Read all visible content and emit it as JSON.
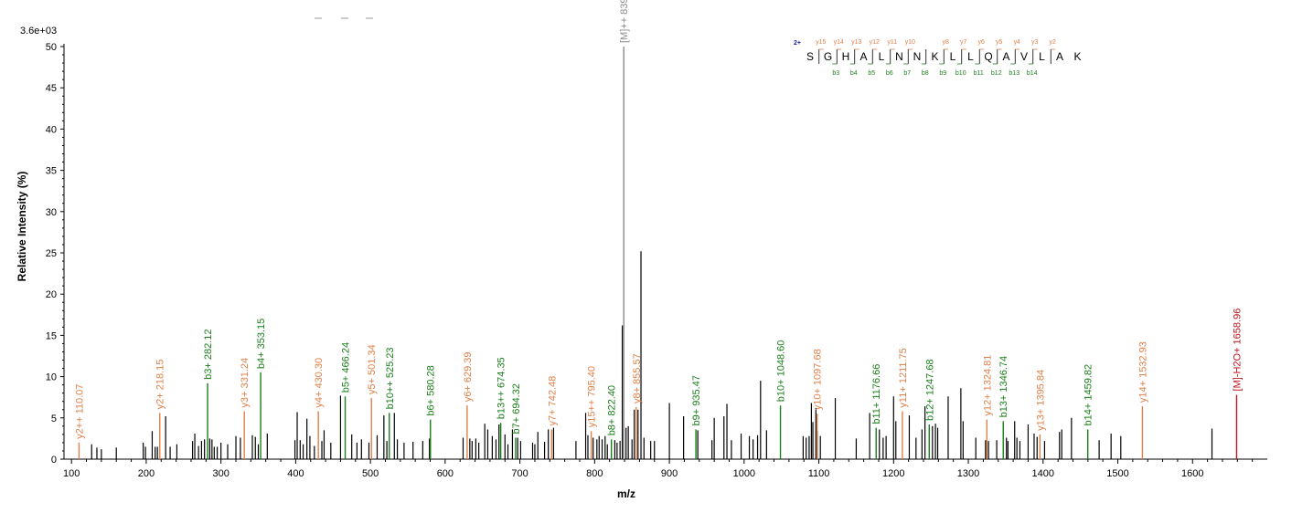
{
  "chart_data": {
    "type": "bar",
    "ymax_label": "3.6e+03",
    "ylabel": "Relative   Intensity (%)",
    "xlabel": "m/z",
    "xlim": [
      90,
      1700
    ],
    "ylim": [
      0,
      50
    ],
    "xticks": [
      100,
      200,
      300,
      400,
      500,
      600,
      700,
      800,
      900,
      1000,
      1100,
      1200,
      1300,
      1400,
      1500,
      1600
    ],
    "yticks": [
      0,
      5,
      10,
      15,
      20,
      25,
      30,
      35,
      40,
      45,
      50
    ],
    "colors": {
      "y_ion": "#e0804a",
      "b_ion": "#1a7f1a",
      "precursor": "#8c8c8c",
      "neutral_loss": "#c0141e",
      "background": "#000000",
      "charge": "#1a1aa0"
    },
    "labeled_peaks": [
      {
        "mz": 110.07,
        "intensity": 2.0,
        "label": "y2++ 110.07",
        "type": "y"
      },
      {
        "mz": 218.15,
        "intensity": 5.6,
        "label": "y2+ 218.15",
        "type": "y"
      },
      {
        "mz": 282.12,
        "intensity": 9.2,
        "label": "b3+ 282.12",
        "type": "b"
      },
      {
        "mz": 331.24,
        "intensity": 5.8,
        "label": "y3+ 331.24",
        "type": "y"
      },
      {
        "mz": 353.15,
        "intensity": 10.5,
        "label": "b4+ 353.15",
        "type": "b"
      },
      {
        "mz": 430.3,
        "intensity": 5.8,
        "label": "y4+ 430.30",
        "type": "y"
      },
      {
        "mz": 466.24,
        "intensity": 7.6,
        "label": "b5+ 466.24",
        "type": "b"
      },
      {
        "mz": 501.34,
        "intensity": 7.4,
        "label": "y5+ 501.34",
        "type": "y"
      },
      {
        "mz": 525.23,
        "intensity": 5.6,
        "label": "b10++ 525.23",
        "type": "b"
      },
      {
        "mz": 580.28,
        "intensity": 4.8,
        "label": "b6+ 580.28",
        "type": "b"
      },
      {
        "mz": 629.39,
        "intensity": 6.5,
        "label": "y6+ 629.39",
        "type": "y"
      },
      {
        "mz": 674.35,
        "intensity": 4.4,
        "label": "b13++ 674.35",
        "type": "b"
      },
      {
        "mz": 694.32,
        "intensity": 2.6,
        "label": "b7+ 694.32",
        "type": "b"
      },
      {
        "mz": 742.48,
        "intensity": 3.6,
        "label": "y7+ 742.48",
        "type": "y"
      },
      {
        "mz": 795.4,
        "intensity": 3.4,
        "label": "y15++ 795.40",
        "type": "y"
      },
      {
        "mz": 822.4,
        "intensity": 2.4,
        "label": "b8+ 822.40",
        "type": "b"
      },
      {
        "mz": 839.0,
        "intensity": 50.0,
        "label": "[M]++ 839.00",
        "type": "precursor"
      },
      {
        "mz": 855.57,
        "intensity": 6.3,
        "label": "y8+ 855.57",
        "type": "y"
      },
      {
        "mz": 935.47,
        "intensity": 3.6,
        "label": "b9+ 935.47",
        "type": "b"
      },
      {
        "mz": 1048.6,
        "intensity": 6.5,
        "label": "b10+ 1048.60",
        "type": "b"
      },
      {
        "mz": 1097.68,
        "intensity": 5.5,
        "label": "y10+ 1097.68",
        "type": "y"
      },
      {
        "mz": 1176.66,
        "intensity": 3.8,
        "label": "b11+ 1176.66",
        "type": "b"
      },
      {
        "mz": 1211.75,
        "intensity": 5.8,
        "label": "y11+ 1211.75",
        "type": "y"
      },
      {
        "mz": 1247.68,
        "intensity": 4.2,
        "label": "b12+ 1247.68",
        "type": "b"
      },
      {
        "mz": 1324.81,
        "intensity": 4.8,
        "label": "y12+ 1324.81",
        "type": "y"
      },
      {
        "mz": 1346.74,
        "intensity": 4.6,
        "label": "b13+ 1346.74",
        "type": "b"
      },
      {
        "mz": 1395.84,
        "intensity": 3.0,
        "label": "y13+ 1395.84",
        "type": "y"
      },
      {
        "mz": 1459.82,
        "intensity": 3.6,
        "label": "b14+ 1459.82",
        "type": "b"
      },
      {
        "mz": 1532.93,
        "intensity": 6.4,
        "label": "y14+ 1532.93",
        "type": "y"
      },
      {
        "mz": 1658.96,
        "intensity": 7.8,
        "label": "[M]-H2O+ 1658.96",
        "type": "neutral_loss"
      }
    ],
    "unlabeled_peaks": [
      [
        127,
        1.8
      ],
      [
        134,
        1.4
      ],
      [
        140,
        1.2
      ],
      [
        160,
        1.4
      ],
      [
        196,
        2.0
      ],
      [
        199,
        1.5
      ],
      [
        208,
        3.4
      ],
      [
        212,
        1.5
      ],
      [
        215,
        1.5
      ],
      [
        226,
        5.2
      ],
      [
        232,
        1.5
      ],
      [
        241,
        1.8
      ],
      [
        262,
        2.2
      ],
      [
        265,
        3.1
      ],
      [
        270,
        1.6
      ],
      [
        274,
        2.2
      ],
      [
        278,
        2.4
      ],
      [
        285,
        2.5
      ],
      [
        288,
        2.4
      ],
      [
        291,
        1.5
      ],
      [
        295,
        1.5
      ],
      [
        300,
        2.0
      ],
      [
        309,
        1.8
      ],
      [
        320,
        2.8
      ],
      [
        326,
        2.6
      ],
      [
        342,
        2.9
      ],
      [
        346,
        2.7
      ],
      [
        350,
        1.8
      ],
      [
        362,
        3.1
      ],
      [
        399,
        2.3
      ],
      [
        402,
        5.7
      ],
      [
        406,
        2.3
      ],
      [
        410,
        1.8
      ],
      [
        415,
        4.9
      ],
      [
        419,
        2.8
      ],
      [
        425,
        1.6
      ],
      [
        435,
        2.2
      ],
      [
        438,
        3.5
      ],
      [
        447,
        2.0
      ],
      [
        460,
        7.7
      ],
      [
        475,
        3.0
      ],
      [
        482,
        2.0
      ],
      [
        488,
        2.4
      ],
      [
        498,
        2.0
      ],
      [
        509,
        2.9
      ],
      [
        518,
        5.3
      ],
      [
        522,
        2.2
      ],
      [
        532,
        5.6
      ],
      [
        536,
        2.4
      ],
      [
        545,
        2.0
      ],
      [
        557,
        2.1
      ],
      [
        570,
        2.2
      ],
      [
        579,
        2.5
      ],
      [
        624,
        2.6
      ],
      [
        633,
        2.5
      ],
      [
        636,
        2.2
      ],
      [
        641,
        2.5
      ],
      [
        645,
        2.0
      ],
      [
        653,
        4.3
      ],
      [
        657,
        3.6
      ],
      [
        663,
        2.8
      ],
      [
        668,
        2.4
      ],
      [
        672,
        4.2
      ],
      [
        680,
        3.0
      ],
      [
        684,
        1.8
      ],
      [
        690,
        3.6
      ],
      [
        697,
        2.6
      ],
      [
        701,
        2.2
      ],
      [
        717,
        2.0
      ],
      [
        720,
        1.8
      ],
      [
        724,
        3.3
      ],
      [
        733,
        2.1
      ],
      [
        738,
        3.6
      ],
      [
        745,
        3.8
      ],
      [
        775,
        2.2
      ],
      [
        788,
        5.6
      ],
      [
        791,
        2.9
      ],
      [
        798,
        2.6
      ],
      [
        803,
        2.4
      ],
      [
        806,
        2.8
      ],
      [
        810,
        2.4
      ],
      [
        814,
        2.8
      ],
      [
        817,
        1.8
      ],
      [
        827,
        2.3
      ],
      [
        830,
        2.0
      ],
      [
        834,
        2.2
      ],
      [
        837,
        16.2
      ],
      [
        842,
        3.8
      ],
      [
        845,
        4.0
      ],
      [
        850,
        2.4
      ],
      [
        853,
        6.0
      ],
      [
        858,
        6.0
      ],
      [
        862,
        25.2
      ],
      [
        866,
        2.6
      ],
      [
        875,
        2.2
      ],
      [
        880,
        2.2
      ],
      [
        900,
        6.8
      ],
      [
        919,
        5.2
      ],
      [
        938,
        3.5
      ],
      [
        957,
        2.3
      ],
      [
        960,
        5.0
      ],
      [
        973,
        5.2
      ],
      [
        977,
        6.7
      ],
      [
        983,
        2.3
      ],
      [
        996,
        3.1
      ],
      [
        1007,
        2.8
      ],
      [
        1012,
        2.4
      ],
      [
        1018,
        2.9
      ],
      [
        1022,
        9.5
      ],
      [
        1030,
        3.5
      ],
      [
        1079,
        2.8
      ],
      [
        1083,
        2.6
      ],
      [
        1087,
        2.8
      ],
      [
        1090,
        6.8
      ],
      [
        1092,
        4.5
      ],
      [
        1096,
        6.2
      ],
      [
        1098,
        3.4
      ],
      [
        1102,
        2.8
      ],
      [
        1122,
        7.4
      ],
      [
        1150,
        2.5
      ],
      [
        1168,
        5.6
      ],
      [
        1181,
        3.6
      ],
      [
        1186,
        2.6
      ],
      [
        1190,
        2.8
      ],
      [
        1200,
        7.6
      ],
      [
        1203,
        4.6
      ],
      [
        1221,
        5.3
      ],
      [
        1230,
        2.6
      ],
      [
        1238,
        3.6
      ],
      [
        1242,
        6.4
      ],
      [
        1252,
        4.0
      ],
      [
        1256,
        4.3
      ],
      [
        1259,
        3.8
      ],
      [
        1273,
        7.6
      ],
      [
        1290,
        8.6
      ],
      [
        1293,
        4.6
      ],
      [
        1310,
        2.6
      ],
      [
        1323,
        2.3
      ],
      [
        1327,
        2.2
      ],
      [
        1338,
        2.3
      ],
      [
        1351,
        2.6
      ],
      [
        1353,
        2.2
      ],
      [
        1362,
        4.6
      ],
      [
        1365,
        2.6
      ],
      [
        1369,
        2.2
      ],
      [
        1380,
        4.2
      ],
      [
        1388,
        3.1
      ],
      [
        1392,
        2.7
      ],
      [
        1402,
        2.2
      ],
      [
        1422,
        3.3
      ],
      [
        1425,
        3.6
      ],
      [
        1438,
        5.0
      ],
      [
        1475,
        2.3
      ],
      [
        1491,
        3.1
      ],
      [
        1504,
        2.8
      ],
      [
        1626,
        3.7
      ]
    ]
  },
  "sequence": {
    "charge": "2+",
    "letters": [
      "S",
      "G",
      "H",
      "A",
      "L",
      "N",
      "N",
      "K",
      "L",
      "L",
      "Q",
      "A",
      "V",
      "L",
      "A",
      "K"
    ],
    "y_ions": [
      "y15",
      "y14",
      "y13",
      "y12",
      "y11",
      "y10",
      "",
      "y8",
      "y7",
      "y6",
      "y5",
      "y4",
      "y3",
      "y2",
      ""
    ],
    "b_ions": [
      "",
      "b3",
      "b4",
      "b5",
      "b6",
      "b7",
      "b8",
      "b9",
      "b10",
      "b11",
      "b12",
      "b13",
      "b14",
      "",
      ""
    ]
  }
}
